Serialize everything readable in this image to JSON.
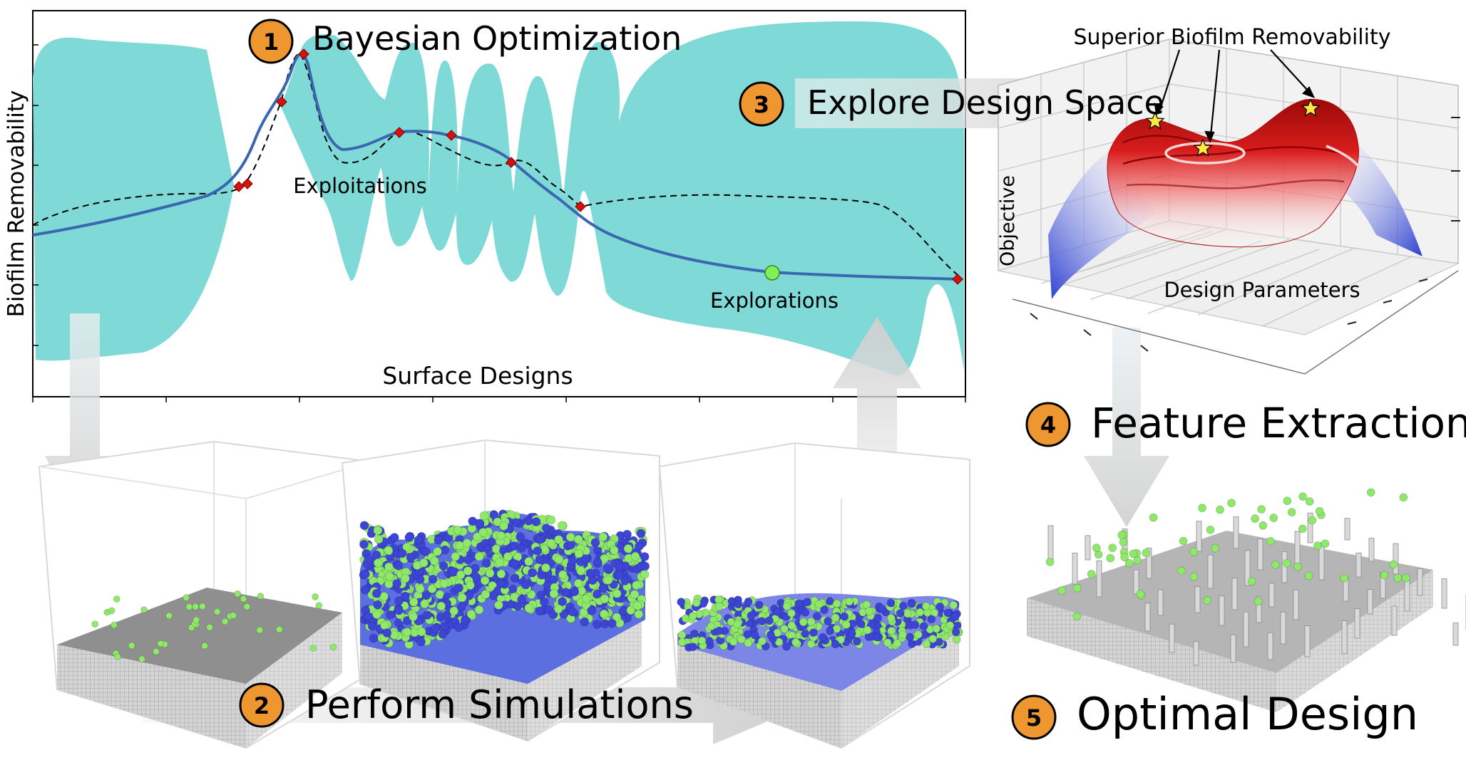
{
  "steps": [
    {
      "number": "1",
      "label": "Bayesian Optimization"
    },
    {
      "number": "2",
      "label": "Perform Simulations"
    },
    {
      "number": "3",
      "label": "Explore Design Space"
    },
    {
      "number": "4",
      "label": "Feature Extraction"
    },
    {
      "number": "5",
      "label": "Optimal Design"
    }
  ],
  "gp_plot": {
    "ylabel": "Biofilm Removability",
    "xlabel": "Surface Designs",
    "annotations": {
      "exploitations": "Exploitations",
      "explorations": "Explorations"
    },
    "colors": {
      "confidence_band": "#7fd9d6",
      "mean": "#3a68b0",
      "truth": "#000000",
      "observation": "#dd0e0e",
      "next_point": "#7ff05a"
    }
  },
  "surface_plot": {
    "title": "Superior Biofilm Removability",
    "zlabel": "Objective",
    "xlabel": "Design Parameters",
    "colors": {
      "high": "#c41414",
      "low": "#2a3fd0",
      "star": "#ffe840"
    }
  },
  "simulation_panels": [
    {
      "state": "initial attachment"
    },
    {
      "state": "grown biofilm"
    },
    {
      "state": "partial removal"
    }
  ],
  "badge_color": "#ee9630"
}
